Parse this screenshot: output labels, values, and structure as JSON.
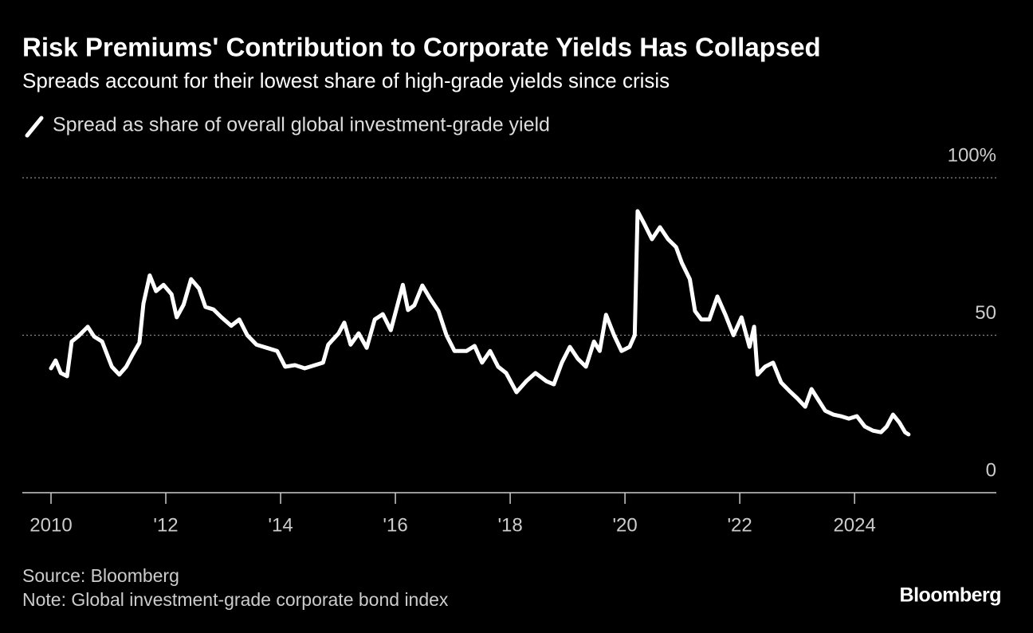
{
  "chart_data": {
    "type": "line",
    "title": "Risk Premiums' Contribution to Corporate Yields Has Collapsed",
    "subtitle": "Spreads account for their lowest share of high-grade yields since crisis",
    "source": "Source: Bloomberg",
    "note": "Note: Global investment-grade corporate bond index",
    "logo": "Bloomberg",
    "grid": true,
    "xlim": [
      2009.5,
      2026.47
    ],
    "ylim": [
      0,
      100
    ],
    "xticks": [
      2010,
      {
        "value": 2012,
        "label": "'12"
      },
      {
        "value": 2014,
        "label": "'14"
      },
      {
        "value": 2016,
        "label": "'16"
      },
      {
        "value": 2018,
        "label": "'18"
      },
      {
        "value": 2020,
        "label": "'20"
      },
      {
        "value": 2022,
        "label": "'22"
      },
      2024
    ],
    "yticks": [
      0,
      50,
      {
        "value": 100,
        "label": "100%"
      }
    ],
    "x": [
      2010.0,
      2010.08,
      2010.17,
      2010.28,
      2010.36,
      2010.47,
      2010.64,
      2010.75,
      2010.89,
      2011.06,
      2011.19,
      2011.31,
      2011.42,
      2011.54,
      2011.61,
      2011.72,
      2011.83,
      2011.96,
      2012.1,
      2012.19,
      2012.31,
      2012.44,
      2012.58,
      2012.69,
      2012.83,
      2012.97,
      2013.14,
      2013.28,
      2013.42,
      2013.58,
      2013.76,
      2013.94,
      2014.08,
      2014.25,
      2014.42,
      2014.6,
      2014.74,
      2014.83,
      2015.01,
      2015.11,
      2015.22,
      2015.36,
      2015.5,
      2015.64,
      2015.78,
      2015.92,
      2016.13,
      2016.22,
      2016.33,
      2016.47,
      2016.61,
      2016.75,
      2016.89,
      2017.03,
      2017.24,
      2017.38,
      2017.51,
      2017.65,
      2017.79,
      2017.93,
      2018.11,
      2018.28,
      2018.44,
      2018.63,
      2018.76,
      2018.9,
      2019.04,
      2019.18,
      2019.32,
      2019.46,
      2019.56,
      2019.67,
      2019.81,
      2019.94,
      2020.08,
      2020.17,
      2020.22,
      2020.33,
      2020.47,
      2020.61,
      2020.75,
      2020.89,
      2020.99,
      2021.13,
      2021.22,
      2021.33,
      2021.47,
      2021.61,
      2021.75,
      2021.89,
      2022.03,
      2022.17,
      2022.25,
      2022.31,
      2022.44,
      2022.58,
      2022.72,
      2022.86,
      2023.0,
      2023.14,
      2023.25,
      2023.35,
      2023.49,
      2023.63,
      2023.76,
      2023.9,
      2024.04,
      2024.18,
      2024.32,
      2024.46,
      2024.56,
      2024.67,
      2024.78,
      2024.88,
      2024.94
    ],
    "series": [
      {
        "name": "Spread as share of overall global investment-grade yield",
        "color": "#ffffff",
        "values": [
          39.5,
          42,
          38,
          37,
          48,
          49.6,
          52.7,
          49.6,
          48,
          40,
          37.5,
          40,
          43.8,
          47.6,
          60,
          69,
          64,
          66,
          63,
          55.7,
          59.7,
          67.8,
          64.8,
          59,
          58.2,
          55.7,
          53,
          55,
          50,
          47,
          46,
          45,
          40,
          40.5,
          39.5,
          40.5,
          41.3,
          47,
          50.6,
          54,
          47,
          50.6,
          46,
          55,
          56.7,
          51.6,
          66,
          58,
          59.5,
          65.8,
          61.5,
          57.7,
          50,
          45,
          45,
          46.6,
          41.3,
          45,
          40,
          38,
          31.9,
          35.4,
          38,
          35.4,
          34.4,
          41.3,
          46.3,
          42.5,
          40,
          48,
          45,
          56.5,
          50,
          45,
          46.3,
          50,
          89.4,
          85.6,
          80.5,
          84.3,
          80.5,
          78,
          73,
          67.8,
          57.7,
          55,
          55,
          62.3,
          56.5,
          50,
          55.7,
          46.3,
          52.7,
          37.5,
          40,
          41.3,
          35,
          32.4,
          30,
          27.3,
          32.9,
          30,
          26,
          24.8,
          24.3,
          23.5,
          24.3,
          21,
          19.7,
          19.2,
          21,
          24.8,
          22.3,
          19.2,
          18.5
        ]
      }
    ]
  }
}
